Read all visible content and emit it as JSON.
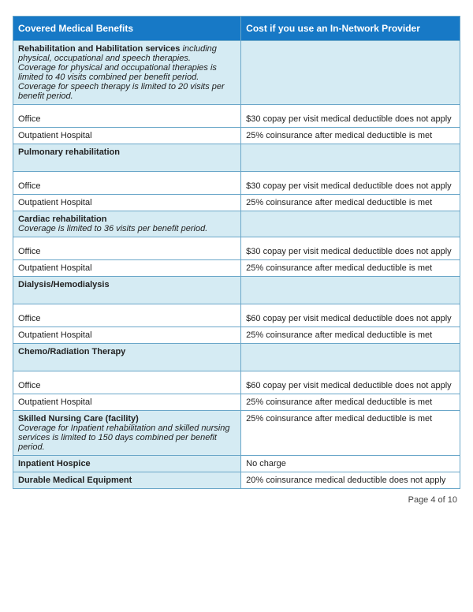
{
  "header": {
    "col1": "Covered Medical Benefits",
    "col2": "Cost if you use an In-Network Provider"
  },
  "sections": [
    {
      "title": "Rehabilitation and Habilitation services",
      "title_suffix_italic": " including physical, occupational and speech therapies.",
      "note": "Coverage for physical and occupational therapies is limited to 40 visits combined per benefit period. Coverage for speech therapy is limited to 20 visits per benefit period.",
      "cost": "",
      "rows": [
        {
          "label": "Office",
          "cost": "$30 copay per visit medical deductible does not apply"
        },
        {
          "label": "Outpatient Hospital",
          "cost": "25% coinsurance after medical deductible is met"
        }
      ]
    },
    {
      "title": "Pulmonary rehabilitation",
      "title_suffix_italic": "",
      "note": "",
      "cost": "",
      "rows": [
        {
          "label": "Office",
          "cost": "$30 copay per visit medical deductible does not apply"
        },
        {
          "label": "Outpatient Hospital",
          "cost": "25% coinsurance after medical deductible is met"
        }
      ]
    },
    {
      "title": "Cardiac rehabilitation",
      "title_suffix_italic": "",
      "note": "Coverage is limited to 36 visits per benefit period.",
      "cost": "",
      "rows": [
        {
          "label": "Office",
          "cost": "$30 copay per visit medical deductible does not apply"
        },
        {
          "label": "Outpatient Hospital",
          "cost": "25% coinsurance after medical deductible is met"
        }
      ]
    },
    {
      "title": "Dialysis/Hemodialysis",
      "title_suffix_italic": "",
      "note": "",
      "cost": "",
      "rows": [
        {
          "label": "Office",
          "cost": "$60 copay per visit medical deductible does not apply"
        },
        {
          "label": "Outpatient Hospital",
          "cost": "25% coinsurance after medical deductible is met"
        }
      ]
    },
    {
      "title": "Chemo/Radiation Therapy",
      "title_suffix_italic": "",
      "note": "",
      "cost": "",
      "rows": [
        {
          "label": "Office",
          "cost": "$60 copay per visit medical deductible does not apply"
        },
        {
          "label": "Outpatient Hospital",
          "cost": "25% coinsurance after medical deductible is met"
        }
      ]
    },
    {
      "title": "Skilled Nursing Care (facility)",
      "title_suffix_italic": "",
      "note": "Coverage for Inpatient rehabilitation and skilled nursing services is limited to 150 days combined per benefit period.",
      "cost": "25% coinsurance after medical deductible is met",
      "rows": []
    },
    {
      "title": "Inpatient Hospice",
      "title_suffix_italic": "",
      "note": "",
      "cost": "No charge",
      "rows": []
    },
    {
      "title": "Durable Medical Equipment",
      "title_suffix_italic": "",
      "note": "",
      "cost": "20% coinsurance medical deductible does not apply",
      "rows": []
    }
  ],
  "footer": "Page 4 of 10",
  "colors": {
    "header_bg": "#1779c6",
    "section_bg": "#d5ebf3",
    "border": "#6ba7c9"
  }
}
